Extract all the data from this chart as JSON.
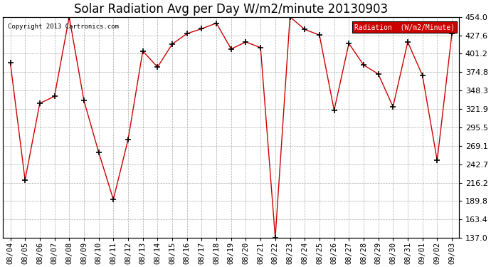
{
  "title": "Solar Radiation Avg per Day W/m2/minute 20130903",
  "copyright_text": "Copyright 2013 Cartronics.com",
  "legend_label": "Radiation  (W/m2/Minute)",
  "dates": [
    "08/04",
    "08/05",
    "08/06",
    "08/07",
    "08/08",
    "08/09",
    "08/10",
    "08/11",
    "08/12",
    "08/13",
    "08/14",
    "08/15",
    "08/16",
    "08/17",
    "08/18",
    "08/19",
    "08/20",
    "08/21",
    "08/22",
    "08/23",
    "08/24",
    "08/25",
    "08/26",
    "08/27",
    "08/28",
    "08/29",
    "08/30",
    "08/31",
    "09/01",
    "09/02",
    "09/03"
  ],
  "values": [
    388,
    220,
    330,
    340,
    454,
    334,
    260,
    192,
    278,
    405,
    382,
    415,
    430,
    437,
    445,
    408,
    418,
    410,
    137,
    454,
    436,
    428,
    320,
    416,
    385,
    372,
    325,
    418,
    370,
    248,
    430
  ],
  "line_color": "#cc0000",
  "marker_color": "#000000",
  "bg_color": "#ffffff",
  "plot_bg_color": "#ffffff",
  "grid_color": "#aaaaaa",
  "ylim_min": 137.0,
  "ylim_max": 454.0,
  "yticks": [
    137.0,
    163.4,
    189.8,
    216.2,
    242.7,
    269.1,
    295.5,
    321.9,
    348.3,
    374.8,
    401.2,
    427.6,
    454.0
  ],
  "title_fontsize": 12,
  "legend_bg": "#cc0000",
  "legend_text_color": "#ffffff"
}
